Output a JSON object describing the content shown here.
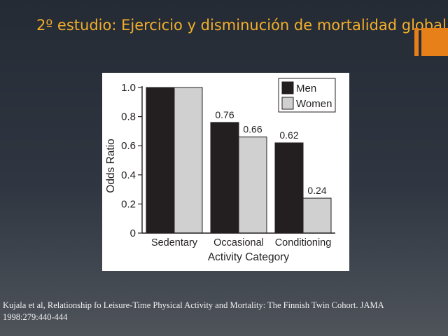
{
  "slide": {
    "title": "2º estudio: Ejercicio y disminución de mortalidad global",
    "citation": "Kujala et al, Relationship fo Leisure-Time Physical Activity and Mortality: The Finnish Twin Cohort. JAMA 1998:279:440-444",
    "accent_color": "#e8801a",
    "title_color": "#f2ae2a"
  },
  "chart_data": {
    "type": "bar",
    "categories": [
      "Sedentary",
      "Occasional",
      "Conditioning"
    ],
    "series": [
      {
        "name": "Men",
        "values": [
          1.0,
          0.76,
          0.62
        ],
        "color": "#231f20",
        "labels": [
          "",
          "0.76",
          "0.62"
        ]
      },
      {
        "name": "Women",
        "values": [
          1.0,
          0.66,
          0.24
        ],
        "color": "#d0d0d0",
        "labels": [
          "",
          "0.66",
          "0.24"
        ]
      }
    ],
    "xlabel": "Activity Category",
    "ylabel": "Odds Ratio",
    "ylim": [
      0,
      1.0
    ],
    "yticks": [
      {
        "value": 0,
        "label": "0"
      },
      {
        "value": 0.2,
        "label": "0.2"
      },
      {
        "value": 0.4,
        "label": "0.4"
      },
      {
        "value": 0.6,
        "label": "0.6"
      },
      {
        "value": 0.8,
        "label": "0.8"
      },
      {
        "value": 1.0,
        "label": "1.0"
      }
    ],
    "legend_position": "top-right",
    "grid": false
  }
}
